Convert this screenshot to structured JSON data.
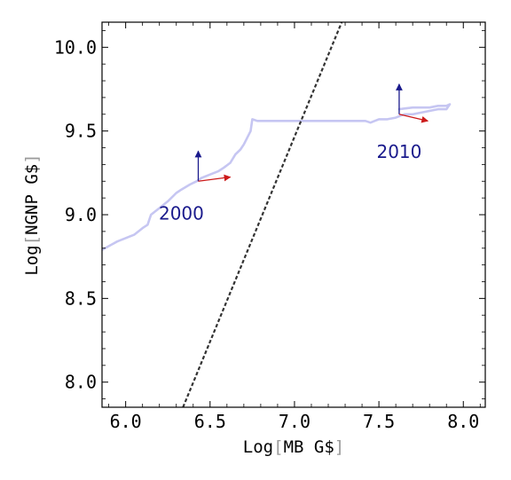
{
  "chart_data": {
    "type": "line",
    "xlabel": {
      "prefix": "Log",
      "open": "[",
      "inner": "MB G$",
      "close": "]"
    },
    "ylabel": {
      "prefix": "Log",
      "open": "[",
      "inner": "NGNP G$",
      "close": "]"
    },
    "xlim": [
      5.86,
      8.13
    ],
    "ylim": [
      7.85,
      10.15
    ],
    "xticks": [
      6.0,
      6.5,
      7.0,
      7.5,
      8.0
    ],
    "xtick_labels": [
      "6.0",
      "6.5",
      "7.0",
      "7.5",
      "8.0"
    ],
    "yticks": [
      8.0,
      8.5,
      9.0,
      9.5,
      10.0
    ],
    "ytick_labels": [
      "8.0",
      "8.5",
      "9.0",
      "9.5",
      "10.0"
    ],
    "grid": false,
    "colors": {
      "trajectory": "#c6c6f2",
      "dashed_line": "#333333",
      "vertical_arrow": "#1a1a8c",
      "horizontal_arrow": "#cc1a1a",
      "annotation": "#1a1a8c"
    },
    "series": [
      {
        "style": "solid",
        "x": [
          5.86,
          5.95,
          6.05,
          6.1,
          6.13,
          6.15,
          6.2,
          6.25,
          6.3,
          6.33,
          6.38,
          6.42,
          6.45,
          6.5,
          6.55,
          6.58,
          6.62,
          6.65,
          6.68,
          6.7,
          6.72,
          6.74,
          6.75,
          6.78,
          6.85,
          7.0,
          7.15,
          7.3,
          7.38,
          7.42,
          7.45,
          7.5,
          7.55,
          7.6,
          7.65,
          7.7,
          7.75,
          7.8,
          7.85,
          7.88,
          7.9,
          7.92,
          7.9,
          7.85,
          7.8,
          7.7,
          7.62
        ],
        "y": [
          8.79,
          8.84,
          8.88,
          8.92,
          8.94,
          9.0,
          9.04,
          9.08,
          9.13,
          9.15,
          9.18,
          9.2,
          9.22,
          9.24,
          9.26,
          9.28,
          9.31,
          9.36,
          9.39,
          9.42,
          9.46,
          9.5,
          9.57,
          9.56,
          9.56,
          9.56,
          9.56,
          9.56,
          9.56,
          9.56,
          9.55,
          9.57,
          9.57,
          9.58,
          9.6,
          9.6,
          9.61,
          9.62,
          9.63,
          9.63,
          9.63,
          9.66,
          9.65,
          9.65,
          9.64,
          9.64,
          9.63
        ]
      },
      {
        "style": "dashed",
        "x": [
          6.34,
          7.28
        ],
        "y": [
          7.85,
          10.15
        ]
      }
    ],
    "vectors": [
      {
        "x": 6.43,
        "y": 9.2,
        "dx": 0.0,
        "dy": 0.18,
        "kind": "vertical"
      },
      {
        "x": 6.43,
        "y": 9.2,
        "dx": 0.19,
        "dy": 0.025,
        "kind": "horizontal"
      },
      {
        "x": 7.62,
        "y": 9.6,
        "dx": 0.0,
        "dy": 0.18,
        "kind": "vertical"
      },
      {
        "x": 7.62,
        "y": 9.6,
        "dx": 0.17,
        "dy": -0.04,
        "kind": "horizontal"
      }
    ],
    "annotations": [
      {
        "text": "2000",
        "x": 6.33,
        "y": 8.97
      },
      {
        "text": "2010",
        "x": 7.62,
        "y": 9.34
      }
    ]
  }
}
